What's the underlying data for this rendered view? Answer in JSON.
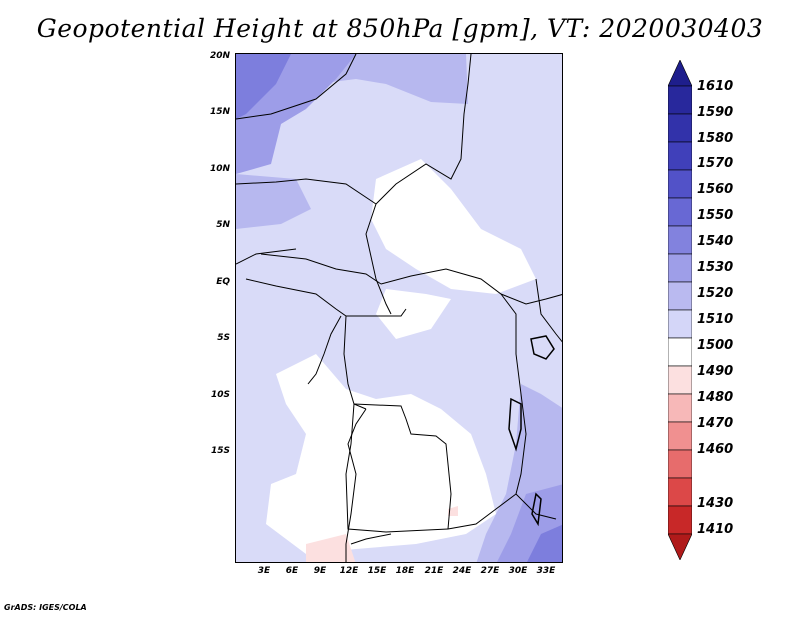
{
  "title": "Geopotential Height at 850hPa [gpm], VT: 2020030403",
  "credit": "GrADS: IGES/COLA",
  "map": {
    "lat_labels": [
      "20N",
      "15N",
      "10N",
      "5N",
      "EQ",
      "5S",
      "10S",
      "15S"
    ],
    "lon_labels": [
      "3E",
      "6E",
      "9E",
      "12E",
      "15E",
      "18E",
      "21E",
      "24E",
      "27E",
      "30E",
      "33E"
    ]
  },
  "colorbar": {
    "levels": [
      "1610",
      "1590",
      "1580",
      "1570",
      "1560",
      "1550",
      "1540",
      "1530",
      "1520",
      "1510",
      "1500",
      "1490",
      "1480",
      "1470",
      "1460",
      "1430",
      "1410"
    ],
    "colors": [
      "#1e1e8c",
      "#28289c",
      "#3232aa",
      "#4040ba",
      "#5252c8",
      "#6868d4",
      "#8282de",
      "#9e9ee8",
      "#babaf0",
      "#d4d6f8",
      "#ffffff",
      "#fce0e0",
      "#f7b8b8",
      "#f09090",
      "#e76c6c",
      "#dc4848",
      "#c82828",
      "#b01a1a"
    ]
  }
}
